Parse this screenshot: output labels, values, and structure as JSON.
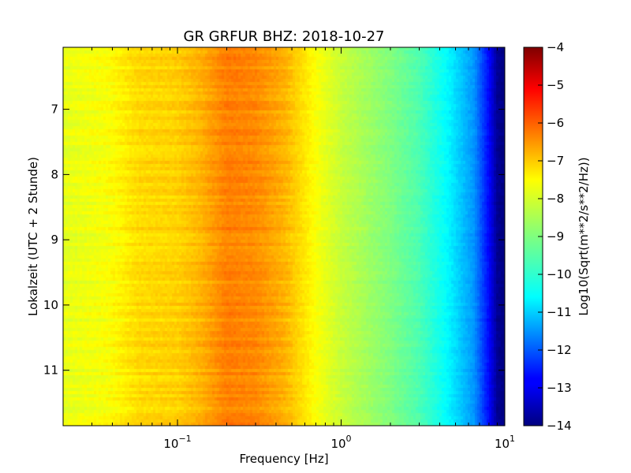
{
  "chart_data": {
    "type": "heatmap",
    "title": "GR GRFUR BHZ: 2018-10-27",
    "xlabel": "Frequency [Hz]",
    "ylabel": "Lokalzeit (UTC + 2 Stunde)",
    "colorbar_label": "Log10(Sqrt(m**2/s**2/Hz))",
    "x_scale": "log",
    "xlim": [
      0.02,
      10
    ],
    "ylim": [
      11.85,
      6.05
    ],
    "y_inverted": true,
    "clim": [
      -14,
      -4
    ],
    "colormap": "jet",
    "x_ticks": [
      {
        "value": 0.1,
        "base": "10",
        "exp": "−1"
      },
      {
        "value": 1,
        "base": "10",
        "exp": "0"
      },
      {
        "value": 10,
        "base": "10",
        "exp": "1"
      }
    ],
    "y_ticks": [
      {
        "value": 7,
        "label": "7"
      },
      {
        "value": 8,
        "label": "8"
      },
      {
        "value": 9,
        "label": "9"
      },
      {
        "value": 10,
        "label": "10"
      },
      {
        "value": 11,
        "label": "11"
      }
    ],
    "colorbar_ticks": [
      {
        "value": -4,
        "label": "−4"
      },
      {
        "value": -5,
        "label": "−5"
      },
      {
        "value": -6,
        "label": "−6"
      },
      {
        "value": -7,
        "label": "−7"
      },
      {
        "value": -8,
        "label": "−8"
      },
      {
        "value": -9,
        "label": "−9"
      },
      {
        "value": -10,
        "label": "−10"
      },
      {
        "value": -11,
        "label": "−11"
      },
      {
        "value": -12,
        "label": "−12"
      },
      {
        "value": -13,
        "label": "−13"
      },
      {
        "value": -14,
        "label": "−14"
      }
    ],
    "spectrum_profile": [
      {
        "freq": 0.02,
        "value": -8.0
      },
      {
        "freq": 0.038,
        "value": -7.8
      },
      {
        "freq": 0.058,
        "value": -7.4
      },
      {
        "freq": 0.1,
        "value": -7.3
      },
      {
        "freq": 0.14,
        "value": -7.0
      },
      {
        "freq": 0.2,
        "value": -6.5
      },
      {
        "freq": 0.3,
        "value": -6.6
      },
      {
        "freq": 0.45,
        "value": -7.0
      },
      {
        "freq": 0.7,
        "value": -7.8
      },
      {
        "freq": 1.0,
        "value": -8.3
      },
      {
        "freq": 2.0,
        "value": -9.0
      },
      {
        "freq": 3.0,
        "value": -9.5
      },
      {
        "freq": 4.5,
        "value": -10.3
      },
      {
        "freq": 6.5,
        "value": -11.3
      },
      {
        "freq": 8.0,
        "value": -12.7
      },
      {
        "freq": 9.0,
        "value": -13.8
      },
      {
        "freq": 10.0,
        "value": -14.0
      }
    ]
  }
}
